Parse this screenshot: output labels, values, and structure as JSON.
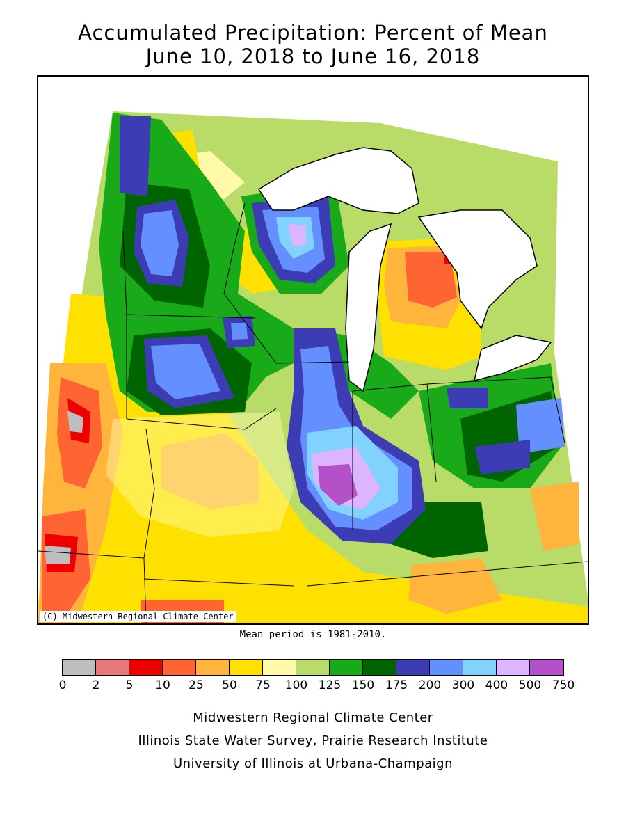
{
  "title": {
    "line1": "Accumulated Precipitation: Percent of Mean",
    "line2": "June 10, 2018 to June 16, 2018"
  },
  "map": {
    "credit": "(C) Midwestern Regional Climate Center",
    "regions": [
      {
        "name": "minnesota-wisconsin-wet",
        "category": "125-150"
      },
      {
        "name": "illinois-heavy-rain",
        "category": "500-750"
      },
      {
        "name": "upper-michigan-wet",
        "category": "400-500"
      },
      {
        "name": "lower-michigan-dry",
        "category": "10-25"
      },
      {
        "name": "missouri-dry",
        "category": "50-75"
      },
      {
        "name": "western-edge-dry",
        "category": "0-2"
      }
    ]
  },
  "mean_period": "Mean period is 1981-2010.",
  "legend": {
    "colors": [
      "#bebebe",
      "#e8787a",
      "#ee0000",
      "#ff6432",
      "#ffb43c",
      "#ffe100",
      "#fffaaa",
      "#b9dc69",
      "#19aa19",
      "#006400",
      "#3c3cb4",
      "#6490ff",
      "#82d2ff",
      "#dcb4ff",
      "#b450c8"
    ],
    "ticks": [
      "0",
      "2",
      "5",
      "10",
      "25",
      "50",
      "75",
      "100",
      "125",
      "150",
      "175",
      "200",
      "300",
      "400",
      "500",
      "750"
    ]
  },
  "footer": {
    "line1": "Midwestern Regional Climate Center",
    "line2": "Illinois State Water Survey, Prairie Research Institute",
    "line3": "University of Illinois at Urbana-Champaign"
  }
}
